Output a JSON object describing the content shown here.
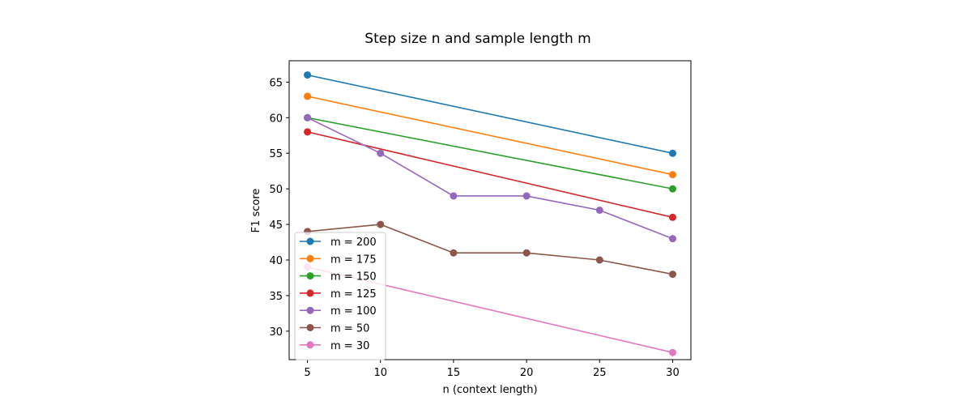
{
  "chart_data": {
    "type": "line",
    "title": "Step size n and sample length m",
    "xlabel": "n (context length)",
    "ylabel": "F1 score",
    "xlim": [
      3.75,
      31.25
    ],
    "ylim": [
      26,
      68
    ],
    "xticks": [
      5,
      10,
      15,
      20,
      25,
      30
    ],
    "yticks": [
      30,
      35,
      40,
      45,
      50,
      55,
      60,
      65
    ],
    "grid": false,
    "legend_position": "lower-left",
    "series": [
      {
        "name": "m = 200",
        "color": "#1f77b4",
        "x": [
          5,
          30
        ],
        "y": [
          66,
          55
        ]
      },
      {
        "name": "m = 175",
        "color": "#ff7f0e",
        "x": [
          5,
          30
        ],
        "y": [
          63,
          52
        ]
      },
      {
        "name": "m = 150",
        "color": "#2ca02c",
        "x": [
          5,
          30
        ],
        "y": [
          60,
          50
        ]
      },
      {
        "name": "m = 125",
        "color": "#d62728",
        "x": [
          5,
          30
        ],
        "y": [
          58,
          46
        ]
      },
      {
        "name": "m = 100",
        "color": "#9467bd",
        "x": [
          5,
          10,
          15,
          20,
          25,
          30
        ],
        "y": [
          60,
          55,
          49,
          49,
          47,
          43
        ]
      },
      {
        "name": "m = 50",
        "color": "#8c564b",
        "x": [
          5,
          10,
          15,
          20,
          25,
          30
        ],
        "y": [
          44,
          45,
          41,
          41,
          40,
          38
        ]
      },
      {
        "name": "m = 30",
        "color": "#e377c2",
        "x": [
          5,
          30
        ],
        "y": [
          39,
          27
        ]
      }
    ]
  }
}
